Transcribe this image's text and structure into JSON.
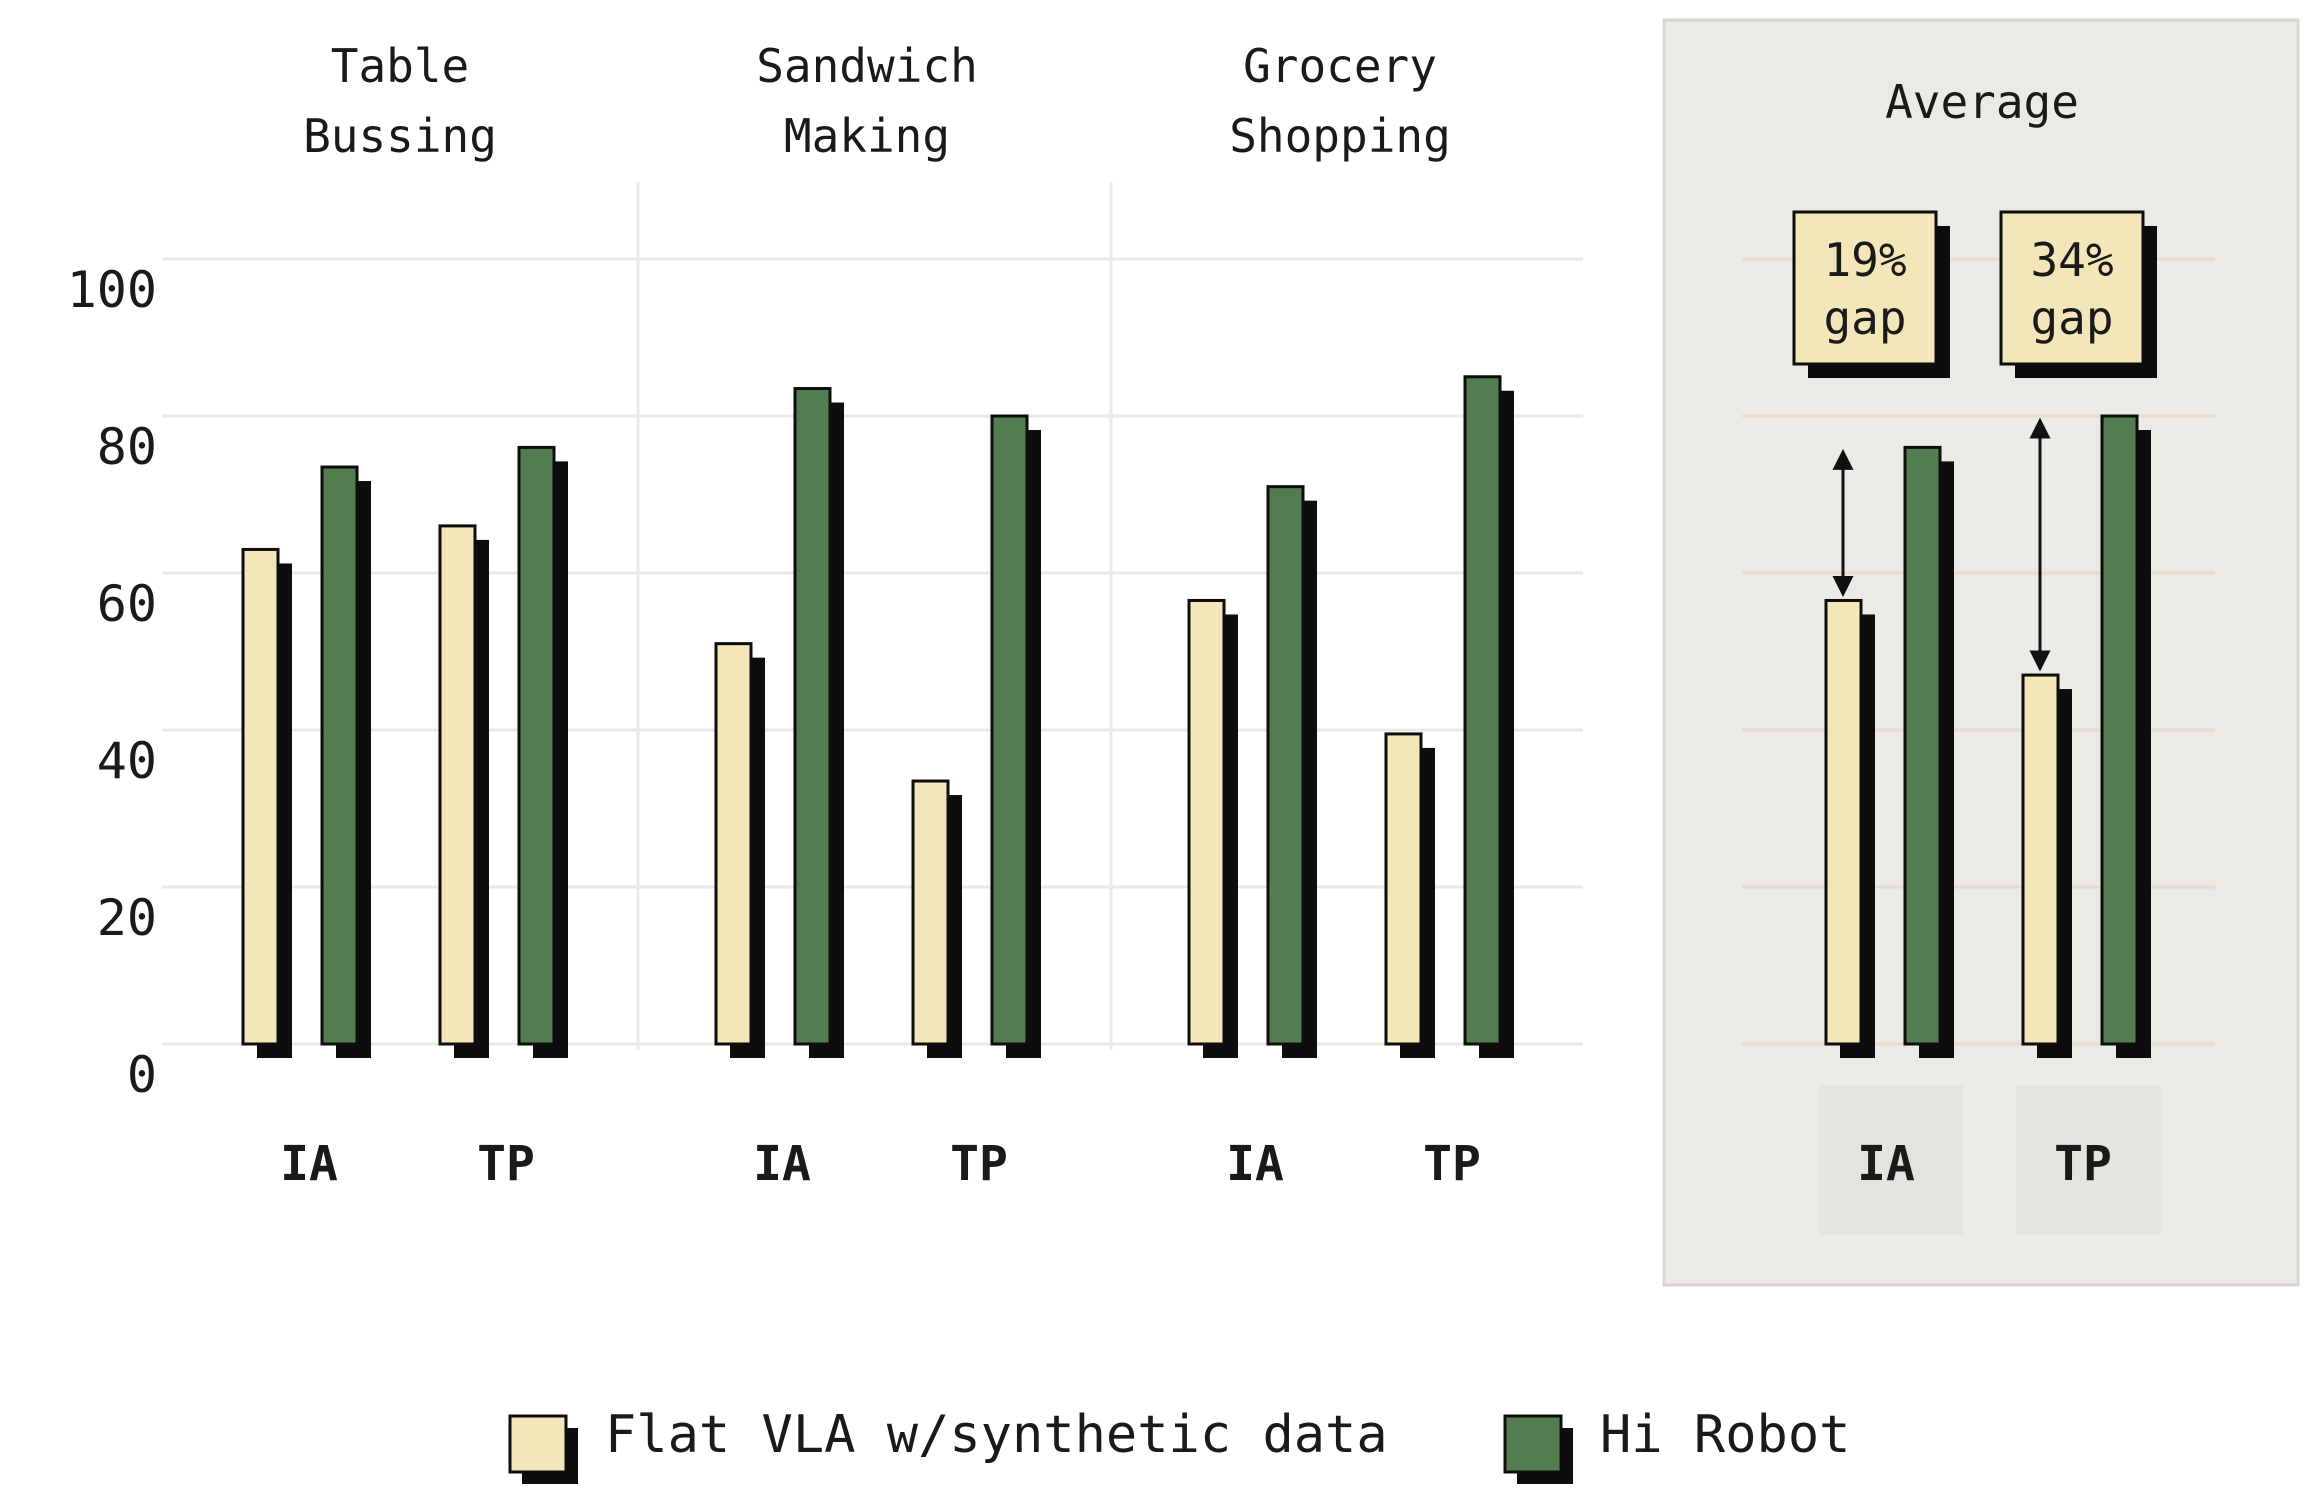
{
  "chart_data": {
    "type": "bar",
    "y_axis": {
      "ylim": [
        0,
        100
      ],
      "ticks": [
        0,
        20,
        40,
        60,
        80,
        100
      ]
    },
    "series_names": [
      "Flat VLA w/synthetic data",
      "Hi Robot"
    ],
    "groups": [
      {
        "title": [
          "Table",
          "Bussing"
        ],
        "categories": [
          "IA",
          "TP"
        ],
        "series": [
          {
            "name": "Flat VLA w/synthetic data",
            "values": [
              63,
              66
            ]
          },
          {
            "name": "Hi Robot",
            "values": [
              73.5,
              76
            ]
          }
        ]
      },
      {
        "title": [
          "Sandwich",
          "Making"
        ],
        "categories": [
          "IA",
          "TP"
        ],
        "series": [
          {
            "name": "Flat VLA w/synthetic data",
            "values": [
              51,
              33.5
            ]
          },
          {
            "name": "Hi Robot",
            "values": [
              83.5,
              80
            ]
          }
        ]
      },
      {
        "title": [
          "Grocery",
          "Shopping"
        ],
        "categories": [
          "IA",
          "TP"
        ],
        "series": [
          {
            "name": "Flat VLA w/synthetic data",
            "values": [
              56.5,
              39.5
            ]
          },
          {
            "name": "Hi Robot",
            "values": [
              71,
              85
            ]
          }
        ]
      },
      {
        "title": [
          "Average"
        ],
        "highlight": true,
        "categories": [
          "IA",
          "TP"
        ],
        "series": [
          {
            "name": "Flat VLA w/synthetic data",
            "values": [
              56.5,
              47
            ]
          },
          {
            "name": "Hi Robot",
            "values": [
              76,
              80
            ]
          }
        ],
        "gap_labels": [
          [
            "19%",
            "gap"
          ],
          [
            "34%",
            "gap"
          ]
        ]
      }
    ],
    "legend": {
      "placement": "bottom-center",
      "items": [
        {
          "label": "Flat VLA w/synthetic data",
          "color": "#f3e6b8"
        },
        {
          "label": "Hi Robot",
          "color": "#547c51"
        }
      ]
    },
    "grid": true
  },
  "colors": {
    "flat": "#f3e6b8",
    "hi": "#547c51",
    "shadow": "#0d0d0d",
    "panel": "#ebeae5",
    "grid": "#e9e9e6"
  }
}
